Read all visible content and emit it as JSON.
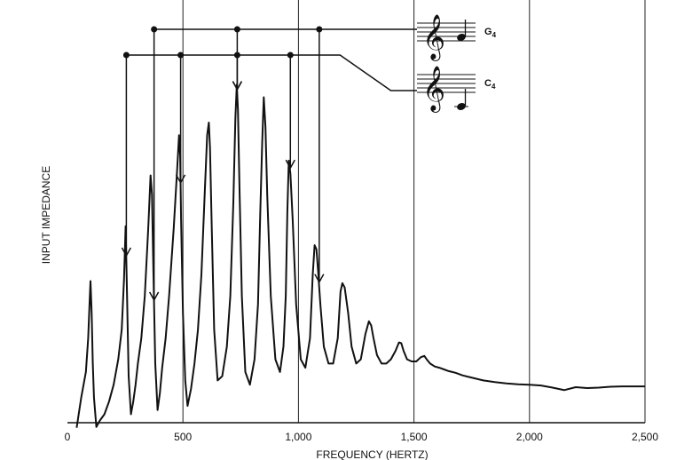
{
  "chart_data": {
    "type": "line",
    "title": "",
    "xlabel": "FREQUENCY (HERTZ)",
    "ylabel": "INPUT IMPEDANCE",
    "xlim": [
      0,
      2500
    ],
    "ylim": [
      0,
      100
    ],
    "x_ticks": [
      0,
      500,
      1000,
      1500,
      2000,
      2500
    ],
    "x_tick_labels": [
      "0",
      "500",
      "1,000",
      "1,500",
      "2,000",
      "2,500"
    ],
    "grid": "vertical",
    "y_axis_numbered": false,
    "series": [
      {
        "color": "#111111",
        "x": [
          40,
          60,
          80,
          90,
          95,
          100,
          105,
          110,
          115,
          125,
          140,
          160,
          180,
          200,
          220,
          235,
          245,
          252,
          258,
          265,
          275,
          285,
          295,
          305,
          320,
          335,
          350,
          360,
          366,
          372,
          380,
          390,
          400,
          410,
          425,
          440,
          460,
          475,
          483,
          488,
          492,
          500,
          510,
          520,
          535,
          550,
          565,
          580,
          595,
          605,
          612,
          617,
          625,
          635,
          650,
          670,
          690,
          705,
          718,
          727,
          733,
          738,
          745,
          755,
          770,
          790,
          810,
          825,
          835,
          843,
          850,
          857,
          865,
          880,
          900,
          920,
          935,
          945,
          952,
          958,
          965,
          975,
          990,
          1010,
          1030,
          1050,
          1062,
          1070,
          1078,
          1085,
          1095,
          1110,
          1130,
          1150,
          1170,
          1182,
          1190,
          1200,
          1215,
          1230,
          1250,
          1270,
          1290,
          1305,
          1315,
          1325,
          1340,
          1360,
          1380,
          1400,
          1420,
          1435,
          1445,
          1455,
          1470,
          1490,
          1510,
          1530,
          1545,
          1555,
          1570,
          1590,
          1610,
          1630,
          1650,
          1680,
          1710,
          1740,
          1770,
          1800,
          1850,
          1900,
          1950,
          2000,
          2050,
          2100,
          2150,
          2200,
          2250,
          2300,
          2350,
          2400,
          2450,
          2500
        ],
        "y": [
          -1.2,
          6,
          12,
          20,
          27,
          33.5,
          26,
          14,
          6,
          -1,
          0.5,
          2,
          5,
          9,
          15,
          22,
          34,
          46.5,
          30,
          11,
          2,
          5,
          9,
          14,
          20,
          30,
          46,
          58.5,
          54,
          36,
          14,
          3,
          7,
          13,
          20,
          30,
          46,
          60,
          68,
          63,
          48,
          26,
          10,
          4,
          8,
          14,
          22,
          35,
          55,
          68,
          71,
          65,
          45,
          22,
          10,
          11,
          18,
          30,
          52,
          72,
          80,
          74,
          55,
          30,
          12,
          9,
          15,
          28,
          50,
          66,
          77,
          70,
          54,
          30,
          15,
          12,
          18,
          30,
          50,
          62,
          59,
          48,
          28,
          15,
          13,
          20,
          35,
          42,
          41,
          36,
          28,
          18,
          14,
          14,
          20,
          31,
          33,
          32,
          26,
          18,
          14,
          15,
          21,
          24,
          23,
          20,
          16,
          14,
          14,
          15,
          17,
          19,
          18.8,
          17,
          15,
          14.5,
          14.5,
          15.5,
          15.8,
          15,
          14,
          13.3,
          13,
          12.6,
          12.2,
          11.8,
          11.2,
          10.8,
          10.4,
          10,
          9.6,
          9.3,
          9.1,
          9,
          8.8,
          8.3,
          7.7,
          8.4,
          8.2,
          8.3,
          8.5,
          8.6,
          8.6,
          8.6
        ]
      }
    ],
    "annotations": [
      {
        "note": "G",
        "subscript": "4",
        "harmonics_hz": [
          375,
          735,
          1090
        ],
        "note_value": "quarter note"
      },
      {
        "note": "C",
        "subscript": "4",
        "harmonics_hz": [
          255,
          490,
          735,
          965
        ],
        "note_value": "quarter note"
      }
    ]
  }
}
